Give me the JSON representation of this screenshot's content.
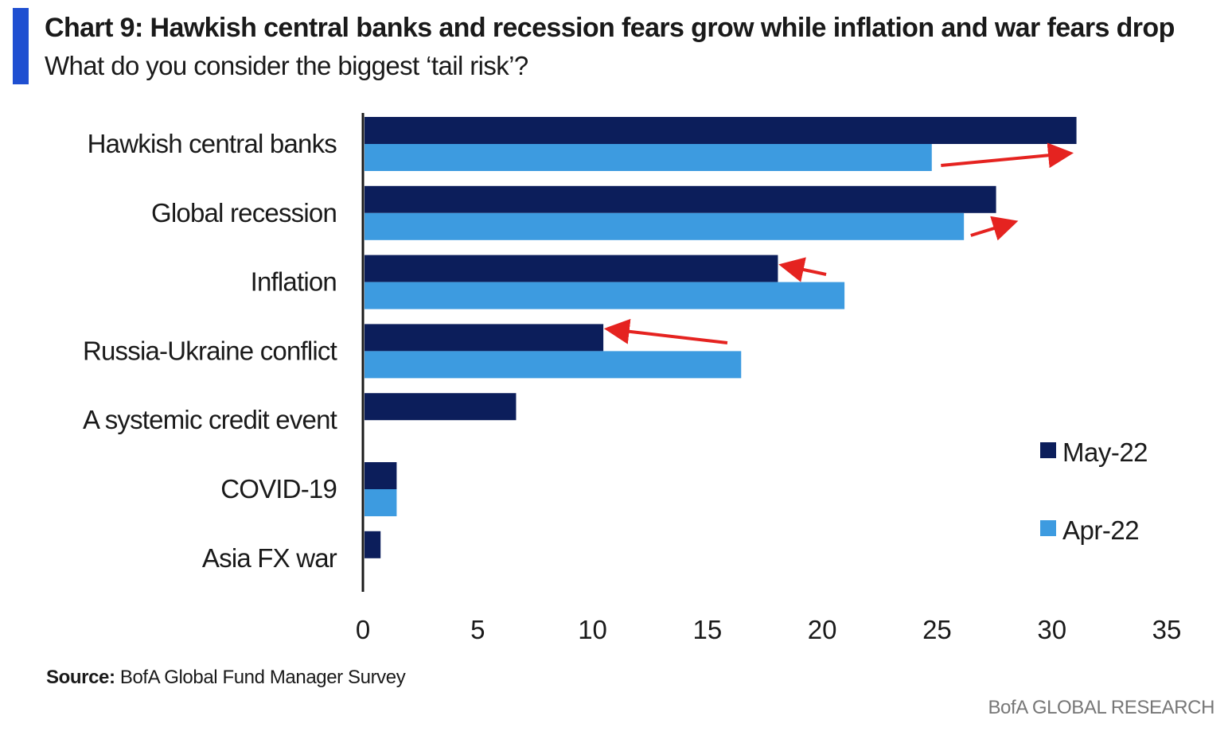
{
  "header": {
    "title": "Chart 9: Hawkish central banks and recession fears grow while inflation and war fears drop",
    "subtitle": "What do you consider the biggest ‘tail risk’?"
  },
  "footer": {
    "source_label": "Source:",
    "source_text": "BofA Global Fund Manager Survey",
    "brand": "BofA GLOBAL RESEARCH"
  },
  "colors": {
    "accent": "#1f4fd1",
    "may": "#0c1e5b",
    "apr": "#3d9be0",
    "arrow": "#e52320"
  },
  "chart_data": {
    "type": "bar",
    "orientation": "horizontal",
    "categories": [
      "Hawkish central banks",
      "Global recession",
      "Inflation",
      "Russia-Ukraine conflict",
      "A systemic credit event",
      "COVID-19",
      "Asia FX war"
    ],
    "series": [
      {
        "name": "May-22",
        "values": [
          31,
          27.5,
          18,
          10.4,
          6.6,
          1.4,
          0.7
        ]
      },
      {
        "name": "Apr-22",
        "values": [
          24.7,
          26.1,
          20.9,
          16.4,
          null,
          1.4,
          null
        ]
      }
    ],
    "xlim": [
      0,
      35
    ],
    "xticks": [
      0,
      5,
      10,
      15,
      20,
      25,
      30,
      35
    ],
    "grid": false,
    "legend": "right",
    "annotations": [
      {
        "type": "arrow",
        "category": "Hawkish central banks",
        "direction": "right"
      },
      {
        "type": "arrow",
        "category": "Global recession",
        "direction": "right"
      },
      {
        "type": "arrow",
        "category": "Inflation",
        "direction": "left"
      },
      {
        "type": "arrow",
        "category": "Russia-Ukraine conflict",
        "direction": "left"
      }
    ]
  }
}
